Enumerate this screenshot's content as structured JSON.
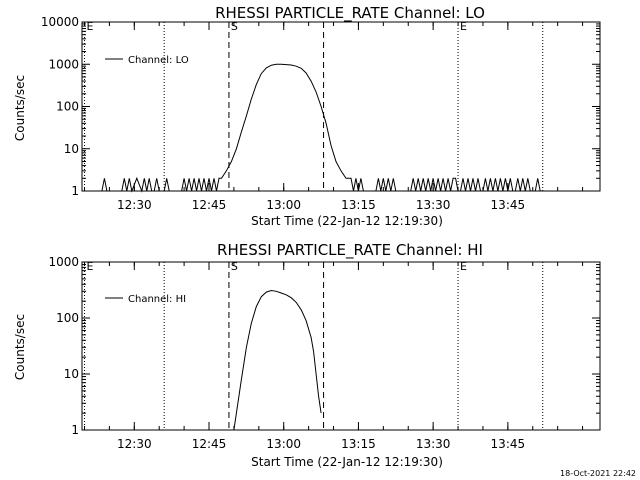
{
  "timestamp": "18-Oct-2021 22:42",
  "chart_data": [
    {
      "type": "line",
      "title": "RHESSI PARTICLE_RATE Channel: LO",
      "xlabel": "Start Time (22-Jan-12 12:19:30)",
      "ylabel": "Counts/sec",
      "yscale": "log",
      "ylim": [
        1,
        10000
      ],
      "xlim_min": [
        0,
        104
      ],
      "x_ticks": [
        {
          "m": 10.5,
          "label": "12:30"
        },
        {
          "m": 25.5,
          "label": "12:45"
        },
        {
          "m": 40.5,
          "label": "13:00"
        },
        {
          "m": 55.5,
          "label": "13:15"
        },
        {
          "m": 70.5,
          "label": "13:30"
        },
        {
          "m": 85.5,
          "label": "13:45"
        }
      ],
      "y_ticks": [
        {
          "v": 1,
          "label": "1"
        },
        {
          "v": 10,
          "label": "10"
        },
        {
          "v": 100,
          "label": "100"
        },
        {
          "v": 1000,
          "label": "1000"
        },
        {
          "v": 10000,
          "label": "10000"
        }
      ],
      "legend": {
        "label": "Channel: LO",
        "position": "top-left"
      },
      "markers": [
        {
          "m": 0.5,
          "style": "dotted",
          "label": "E"
        },
        {
          "m": 16.5,
          "style": "dotted",
          "label": ""
        },
        {
          "m": 29.5,
          "style": "dashed",
          "label": "S"
        },
        {
          "m": 48.5,
          "style": "dashed",
          "label": ""
        },
        {
          "m": 75.5,
          "style": "dotted",
          "label": "E"
        },
        {
          "m": 92.5,
          "style": "dotted",
          "label": ""
        }
      ],
      "series": [
        {
          "name": "Channel: LO",
          "x": [
            4,
            4.5,
            5,
            5.5,
            6,
            7,
            8,
            8.5,
            9,
            9.5,
            10,
            11,
            12,
            12.5,
            13,
            13.5,
            14,
            14.5,
            15,
            15.5,
            16,
            16.5,
            17,
            17.5,
            18,
            19,
            20,
            20.5,
            21,
            21.5,
            22,
            22.5,
            23,
            23.5,
            24,
            24.5,
            25,
            25.5,
            26,
            26.5,
            27,
            27.5,
            28,
            29,
            30,
            31,
            32,
            33,
            34,
            35,
            36,
            37,
            38,
            39,
            40,
            41,
            42,
            43,
            44,
            45,
            46,
            47,
            48,
            49,
            50,
            51,
            52,
            53,
            54,
            54.5,
            55,
            55.5,
            56,
            56.5,
            57,
            57.5,
            58,
            58.5,
            59,
            59.5,
            60,
            60.5,
            61,
            61.5,
            62,
            62.5,
            63,
            63.5,
            64,
            64.5,
            65,
            65.5,
            66,
            66.5,
            67,
            67.5,
            68,
            68.5,
            69,
            69.5,
            70,
            70.5,
            71,
            71.5,
            72,
            72.5,
            73,
            73.5,
            74,
            74.5,
            75,
            75.5,
            76,
            76.5,
            77,
            77.5,
            78,
            78.5,
            79,
            79.5,
            80,
            80.5,
            81,
            81.5,
            82,
            82.5,
            83,
            83.5,
            84,
            84.5,
            85,
            85.5,
            86,
            86.5,
            87,
            87.5,
            88,
            88.5,
            89,
            89.5,
            90,
            90.5,
            91,
            91.5,
            92,
            92.5,
            93
          ],
          "y": [
            1,
            2,
            1,
            1,
            1,
            1,
            1,
            2,
            1,
            2,
            1,
            2,
            1,
            2,
            1,
            2,
            1,
            1,
            2,
            1,
            1,
            1,
            2,
            1,
            1,
            1,
            1,
            2,
            1,
            2,
            1,
            2,
            1,
            2,
            1,
            2,
            1,
            2,
            1,
            2,
            1,
            2,
            2,
            3,
            5,
            10,
            25,
            60,
            150,
            330,
            600,
            820,
            950,
            1000,
            1000,
            980,
            960,
            900,
            800,
            620,
            400,
            220,
            100,
            40,
            12,
            5,
            3,
            2,
            2,
            1,
            2,
            1,
            2,
            1,
            1,
            1,
            1,
            1,
            1,
            2,
            1,
            2,
            1,
            2,
            1,
            2,
            1,
            1,
            1,
            1,
            1,
            1,
            1,
            2,
            1,
            2,
            1,
            2,
            1,
            2,
            1,
            2,
            1,
            2,
            1,
            2,
            1,
            2,
            1,
            2,
            2,
            1,
            1,
            2,
            1,
            2,
            1,
            2,
            1,
            2,
            1,
            1,
            2,
            1,
            2,
            1,
            2,
            1,
            2,
            1,
            2,
            1,
            2,
            1,
            1,
            2,
            1,
            2,
            1,
            2,
            1,
            1,
            1,
            2,
            1,
            1,
            1
          ]
        }
      ]
    },
    {
      "type": "line",
      "title": "RHESSI PARTICLE_RATE Channel: HI",
      "xlabel": "Start Time (22-Jan-12 12:19:30)",
      "ylabel": "Counts/sec",
      "yscale": "log",
      "ylim": [
        1,
        1000
      ],
      "xlim_min": [
        0,
        104
      ],
      "x_ticks": [
        {
          "m": 10.5,
          "label": "12:30"
        },
        {
          "m": 25.5,
          "label": "12:45"
        },
        {
          "m": 40.5,
          "label": "13:00"
        },
        {
          "m": 55.5,
          "label": "13:15"
        },
        {
          "m": 70.5,
          "label": "13:30"
        },
        {
          "m": 85.5,
          "label": "13:45"
        }
      ],
      "y_ticks": [
        {
          "v": 1,
          "label": "1"
        },
        {
          "v": 10,
          "label": "10"
        },
        {
          "v": 100,
          "label": "100"
        },
        {
          "v": 1000,
          "label": "1000"
        }
      ],
      "legend": {
        "label": "Channel: HI",
        "position": "top-left"
      },
      "markers": [
        {
          "m": 0.5,
          "style": "dotted",
          "label": "E"
        },
        {
          "m": 16.5,
          "style": "dotted",
          "label": ""
        },
        {
          "m": 29.5,
          "style": "dashed",
          "label": "S"
        },
        {
          "m": 48.5,
          "style": "dashed",
          "label": ""
        },
        {
          "m": 75.5,
          "style": "dotted",
          "label": "E"
        },
        {
          "m": 92.5,
          "style": "dotted",
          "label": ""
        }
      ],
      "series": [
        {
          "name": "Channel: HI",
          "x": [
            30.5,
            31,
            32,
            33,
            34,
            35,
            36,
            37,
            38,
            39,
            40,
            41,
            42,
            43,
            44,
            45,
            46,
            46.5,
            47,
            47.5,
            48
          ],
          "y": [
            1,
            2,
            8,
            30,
            80,
            160,
            240,
            290,
            310,
            300,
            280,
            260,
            230,
            190,
            140,
            90,
            45,
            25,
            10,
            4,
            2
          ]
        }
      ]
    }
  ]
}
